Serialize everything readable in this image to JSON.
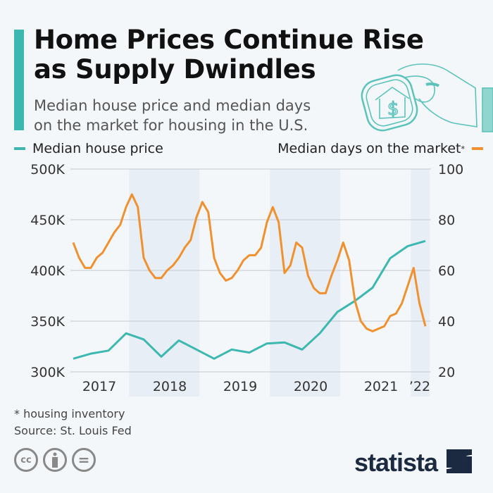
{
  "title_lines": [
    "Home Prices Continue Rise",
    "as Supply Dwindles"
  ],
  "subtitle_lines": [
    "Median house price and median days",
    "on the market for housing in the U.S."
  ],
  "footnote": "* housing inventory",
  "source": "Source: St. Louis Fed",
  "brand": "statista",
  "license_icons": [
    "cc-icon",
    "by-icon",
    "nd-icon"
  ],
  "colors": {
    "price": "#3cb8b0",
    "days": "#f0912f",
    "band": "#e8eef5",
    "background": "#f4f7fa"
  },
  "chart_data": {
    "type": "line",
    "legend": {
      "left": "Median house price",
      "right": "Median days on the market",
      "right_marker": "*"
    },
    "left_axis": {
      "ticks": [
        "300K",
        "350K",
        "400K",
        "450K",
        "500K"
      ],
      "range": [
        300000,
        500000
      ]
    },
    "right_axis": {
      "ticks": [
        "20",
        "40",
        "60",
        "80",
        "100"
      ],
      "range": [
        20,
        100
      ]
    },
    "year_labels": [
      "2017",
      "2018",
      "2019",
      "2020",
      "2021",
      "’22"
    ],
    "shaded_years": [
      "2018",
      "2020",
      "2022"
    ],
    "grid": true,
    "series": [
      {
        "name": "Median house price",
        "axis": "left",
        "unit": "USD",
        "x": [
          "2017-03",
          "2017-06",
          "2017-09",
          "2017-12",
          "2018-03",
          "2018-06",
          "2018-09",
          "2018-12",
          "2019-03",
          "2019-06",
          "2019-09",
          "2019-12",
          "2020-03",
          "2020-06",
          "2020-09",
          "2020-12",
          "2021-03",
          "2021-06",
          "2021-09",
          "2021-12",
          "2022-03"
        ],
        "values": [
          313000,
          318000,
          321000,
          338000,
          332000,
          315000,
          331000,
          322000,
          313000,
          322000,
          319000,
          328000,
          329000,
          322000,
          338000,
          359000,
          370000,
          383000,
          412000,
          424000,
          429000
        ]
      },
      {
        "name": "Median days on the market",
        "axis": "right",
        "unit": "days",
        "x": [
          "2017-03",
          "2017-04",
          "2017-05",
          "2017-06",
          "2017-07",
          "2017-08",
          "2017-09",
          "2017-10",
          "2017-11",
          "2017-12",
          "2018-01",
          "2018-02",
          "2018-03",
          "2018-04",
          "2018-05",
          "2018-06",
          "2018-07",
          "2018-08",
          "2018-09",
          "2018-10",
          "2018-11",
          "2018-12",
          "2019-01",
          "2019-02",
          "2019-03",
          "2019-04",
          "2019-05",
          "2019-06",
          "2019-07",
          "2019-08",
          "2019-09",
          "2019-10",
          "2019-11",
          "2019-12",
          "2020-01",
          "2020-02",
          "2020-03",
          "2020-04",
          "2020-05",
          "2020-06",
          "2020-07",
          "2020-08",
          "2020-09",
          "2020-10",
          "2020-11",
          "2020-12",
          "2021-01",
          "2021-02",
          "2021-03",
          "2021-04",
          "2021-05",
          "2021-06",
          "2021-07",
          "2021-08",
          "2021-09",
          "2021-10",
          "2021-11",
          "2021-12",
          "2022-01",
          "2022-02",
          "2022-03"
        ],
        "values": [
          71,
          65,
          61,
          61,
          65,
          67,
          71,
          75,
          78,
          85,
          90,
          85,
          65,
          60,
          57,
          57,
          60,
          62,
          65,
          69,
          72,
          81,
          87,
          83,
          65,
          59,
          56,
          57,
          60,
          64,
          66,
          66,
          69,
          79,
          85,
          79,
          59,
          62,
          71,
          69,
          58,
          53,
          51,
          51,
          58,
          64,
          71,
          64,
          48,
          40,
          37,
          36,
          37,
          38,
          42,
          43,
          47,
          54,
          61,
          47,
          38
        ]
      }
    ]
  }
}
